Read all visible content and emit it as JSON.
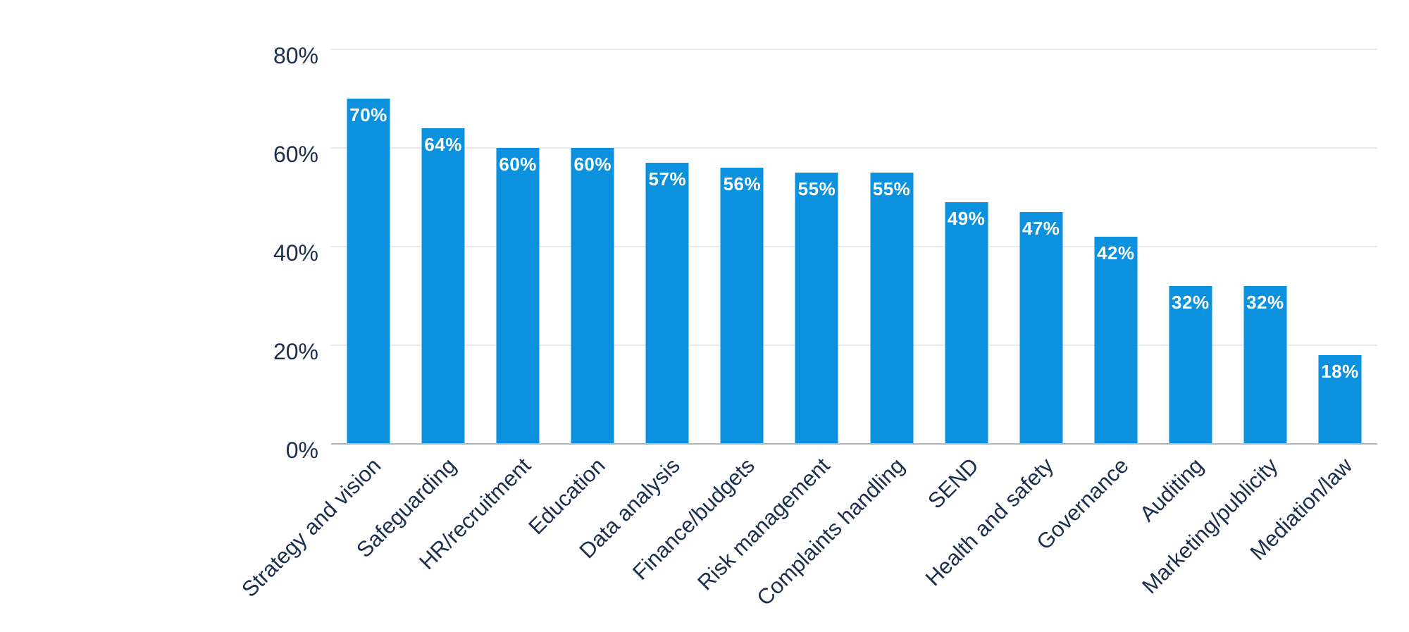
{
  "chart_data": {
    "type": "bar",
    "title": "",
    "xlabel": "",
    "ylabel": "",
    "categories": [
      "Strategy and vision",
      "Safeguarding",
      "HR/recruitment",
      "Education",
      "Data analysis",
      "Finance/budgets",
      "Risk management",
      "Complaints handling",
      "SEND",
      "Health and safety",
      "Governance",
      "Auditing",
      "Marketing/publicity",
      "Mediation/law"
    ],
    "values": [
      70,
      64,
      60,
      60,
      57,
      56,
      55,
      55,
      49,
      47,
      42,
      32,
      32,
      18
    ],
    "bar_labels": [
      "70%",
      "64%",
      "60%",
      "60%",
      "57%",
      "56%",
      "55%",
      "55%",
      "49%",
      "47%",
      "42%",
      "32%",
      "32%",
      "18%"
    ],
    "ylim": [
      0,
      80
    ],
    "yticks": [
      0,
      20,
      40,
      60,
      80
    ],
    "ytick_labels": [
      "0%",
      "20%",
      "40%",
      "60%",
      "80%"
    ],
    "grid": true,
    "legend": false,
    "colors": {
      "bar": "#0b91dd",
      "axis_text": "#1c2e4e",
      "gridline": "#e7ebf1",
      "baseline": "#b0b8bf",
      "bar_label_text": "#ffffff",
      "background": "#ffffff"
    }
  }
}
